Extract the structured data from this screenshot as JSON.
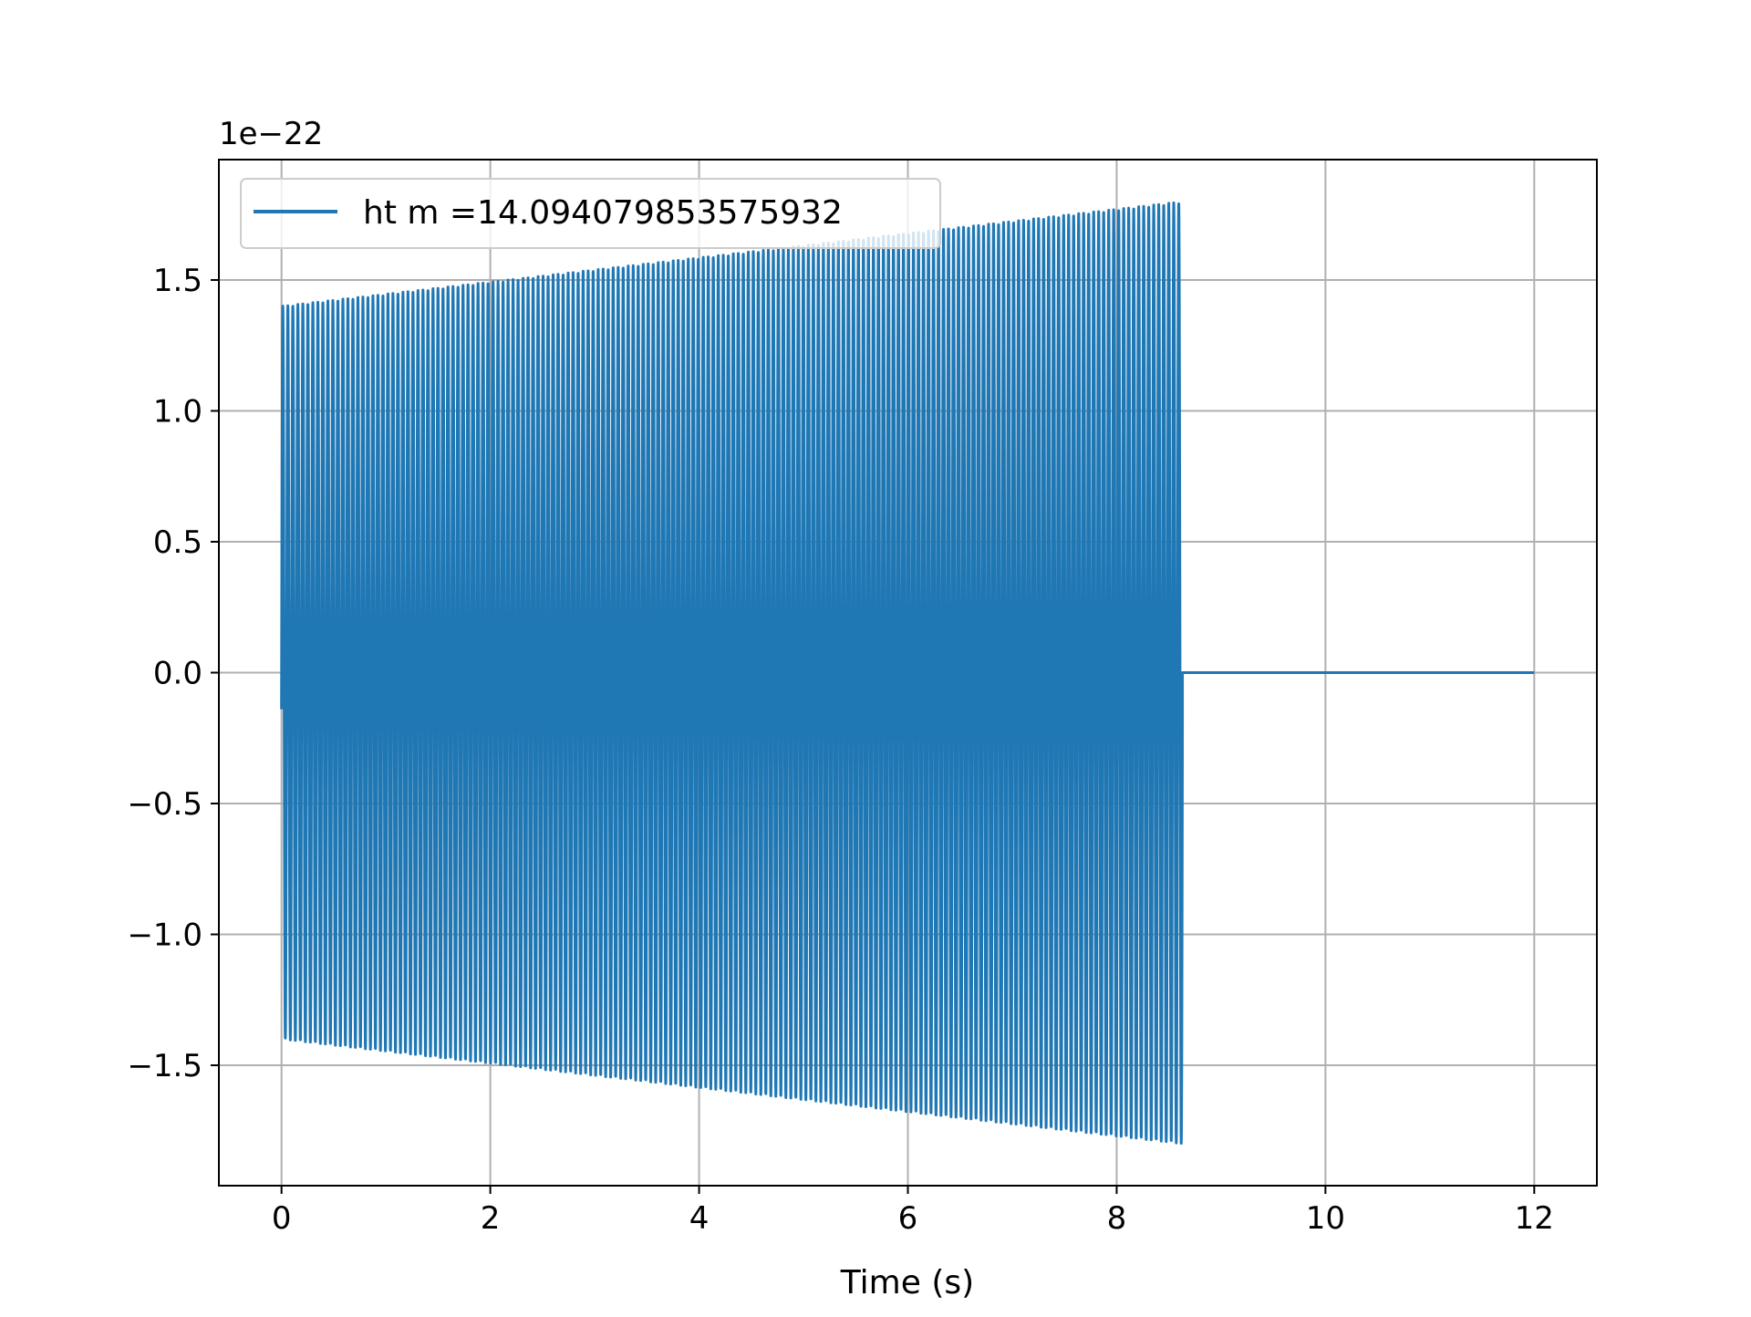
{
  "chart_data": {
    "type": "line",
    "xlabel": "Time (s)",
    "ylabel": "",
    "y_offset_label": "1e−22",
    "y_scale_exponent": -22,
    "xlim": [
      -0.6,
      12.6
    ],
    "ylim": [
      -1.96,
      1.96
    ],
    "x_ticks": [
      0,
      2,
      4,
      6,
      8,
      10,
      12
    ],
    "x_tick_labels": [
      "0",
      "2",
      "4",
      "6",
      "8",
      "10",
      "12"
    ],
    "y_ticks": [
      -1.5,
      -1.0,
      -0.5,
      0.0,
      0.5,
      1.0,
      1.5
    ],
    "y_tick_labels": [
      "−1.5",
      "−1.0",
      "−0.5",
      "0.0",
      "0.5",
      "1.0",
      "1.5"
    ],
    "grid": true,
    "legend_position": "top-left",
    "series": [
      {
        "name": "ht m =14.094079853575932",
        "color": "#1f77b4",
        "signal": {
          "start_time": 0.0,
          "start_amplitude": 1.4,
          "end_time": 8.63,
          "end_amplitude": 1.8,
          "cycles": 180,
          "zero_until": 12.0
        }
      }
    ]
  }
}
